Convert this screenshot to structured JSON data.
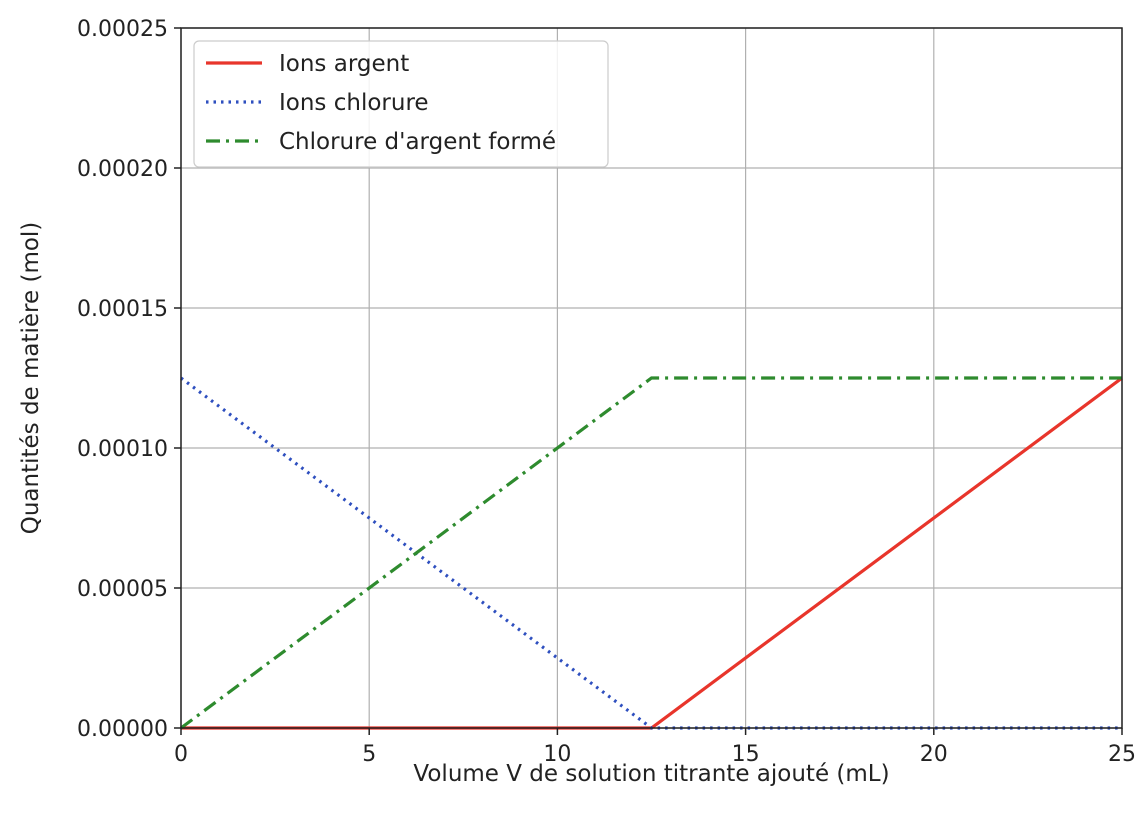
{
  "chart_data": {
    "type": "line",
    "xlabel": "Volume V de solution titrante ajouté (mL)",
    "ylabel": "Quantités de matière (mol)",
    "xlim": [
      0,
      25
    ],
    "ylim": [
      0,
      0.00025
    ],
    "xticks": [
      0,
      5,
      10,
      15,
      20,
      25
    ],
    "xtick_labels": [
      "0",
      "5",
      "10",
      "15",
      "20",
      "25"
    ],
    "yticks": [
      0,
      5e-05,
      0.0001,
      0.00015,
      0.0002,
      0.00025
    ],
    "ytick_labels": [
      "0.00000",
      "0.00005",
      "0.00010",
      "0.00015",
      "0.00020",
      "0.00025"
    ],
    "grid": true,
    "legend_position": "top-left",
    "series": [
      {
        "name": "Ions argent",
        "color": "#e8352b",
        "style": "solid",
        "x": [
          0,
          12.5,
          25
        ],
        "y": [
          0,
          0,
          0.000125
        ]
      },
      {
        "name": "Ions chlorure",
        "color": "#2e4fbf",
        "style": "dotted",
        "x": [
          0,
          12.5,
          25
        ],
        "y": [
          0.000125,
          0,
          0
        ]
      },
      {
        "name": "Chlorure d'argent formé",
        "color": "#2e8b2e",
        "style": "dashdot",
        "x": [
          0,
          12.5,
          25
        ],
        "y": [
          0,
          0.000125,
          0.000125
        ]
      }
    ]
  }
}
